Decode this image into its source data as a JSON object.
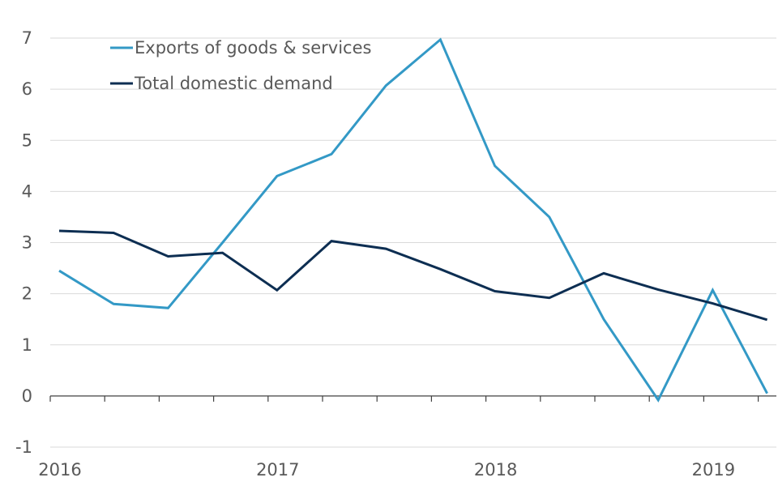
{
  "chart_data": {
    "type": "line",
    "title": "",
    "xlabel": "",
    "ylabel": "",
    "ylim": [
      -1,
      7
    ],
    "yticks": [
      -1,
      0,
      1,
      2,
      3,
      4,
      5,
      6,
      7
    ],
    "grid": "horizontal",
    "legend_position": "top-left",
    "x_quarters": [
      "2016 Q1",
      "2016 Q2",
      "2016 Q3",
      "2016 Q4",
      "2017 Q1",
      "2017 Q2",
      "2017 Q3",
      "2017 Q4",
      "2018 Q1",
      "2018 Q2",
      "2018 Q3",
      "2018 Q4",
      "2019 Q1",
      "2019 Q2"
    ],
    "x_tick_labels": [
      {
        "label": "2016",
        "quarter_index": 0
      },
      {
        "label": "2017",
        "quarter_index": 4
      },
      {
        "label": "2018",
        "quarter_index": 8
      },
      {
        "label": "2019",
        "quarter_index": 12
      }
    ],
    "series": [
      {
        "name": "Exports of goods & services",
        "color": "#3399c6",
        "values": [
          2.45,
          1.8,
          1.72,
          3.0,
          4.3,
          4.73,
          6.07,
          6.97,
          4.5,
          3.5,
          1.5,
          -0.08,
          2.07,
          0.05
        ]
      },
      {
        "name": "Total domestic demand",
        "color": "#0d2e52",
        "values": [
          3.23,
          3.19,
          2.73,
          2.8,
          2.07,
          3.03,
          2.88,
          2.48,
          2.05,
          1.92,
          2.4,
          2.08,
          1.81,
          1.49
        ]
      }
    ]
  }
}
